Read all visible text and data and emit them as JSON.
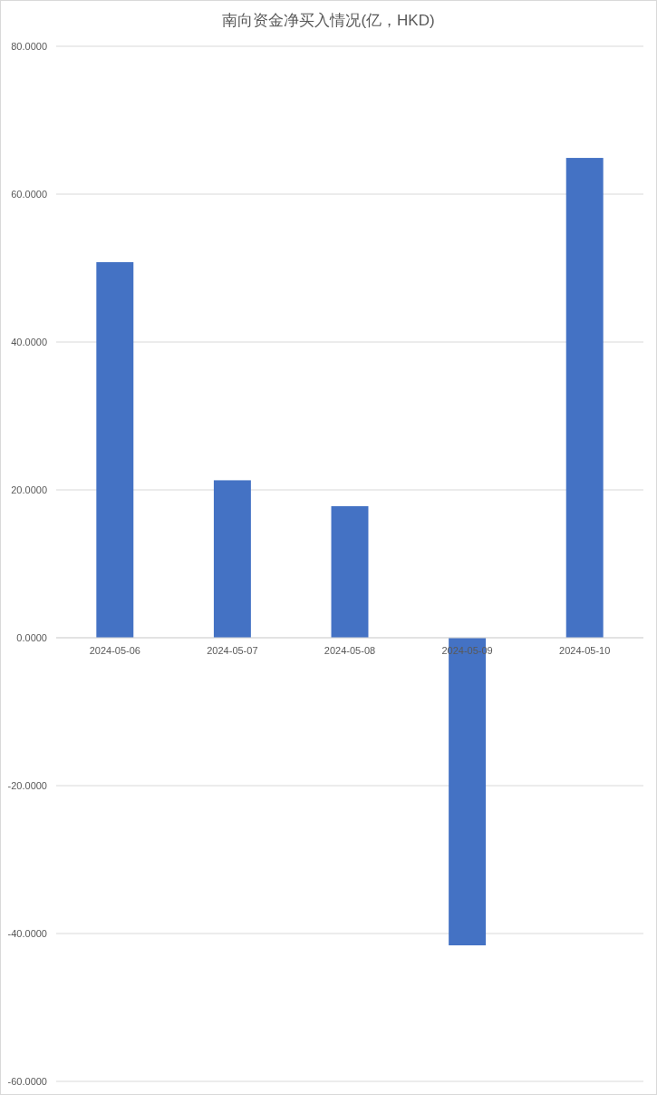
{
  "chart_data": {
    "type": "bar",
    "title": "南向资金净买入情况(亿，HKD)",
    "categories": [
      "2024-05-06",
      "2024-05-07",
      "2024-05-08",
      "2024-05-09",
      "2024-05-10"
    ],
    "values": [
      50.8,
      21.3,
      17.8,
      -41.6,
      64.9
    ],
    "color": "#4472c4",
    "ylim": [
      -60,
      80
    ],
    "yticks": [
      {
        "value": -60,
        "label": "-60.0000"
      },
      {
        "value": -40,
        "label": "-40.0000"
      },
      {
        "value": -20,
        "label": "-20.0000"
      },
      {
        "value": 0,
        "label": "0.0000"
      },
      {
        "value": 20,
        "label": "20.0000"
      },
      {
        "value": 40,
        "label": "40.0000"
      },
      {
        "value": 60,
        "label": "60.0000"
      },
      {
        "value": 80,
        "label": "80.0000"
      }
    ],
    "grid": "y"
  }
}
